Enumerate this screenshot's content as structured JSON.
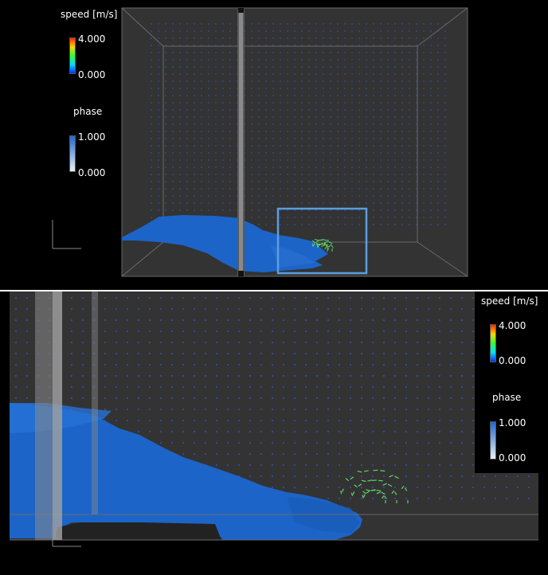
{
  "overview": {
    "speed_legend": {
      "title": "speed [m/s]",
      "max": "4.000",
      "min": "0.000"
    },
    "phase_legend": {
      "title": "phase",
      "max": "1.000",
      "min": "0.000"
    }
  },
  "zoomed": {
    "speed_legend": {
      "title": "speed [m/s]",
      "max": "4.000",
      "min": "0.000"
    },
    "phase_legend": {
      "title": "phase",
      "max": "1.000",
      "min": "0.000"
    }
  },
  "colors": {
    "background": "#000000",
    "domain": "#343434",
    "water": "#1c64c8",
    "highlight_box": "#5a9ee0",
    "vector_dim": "#3a48a8",
    "vector_fast": "#5fd36a"
  }
}
